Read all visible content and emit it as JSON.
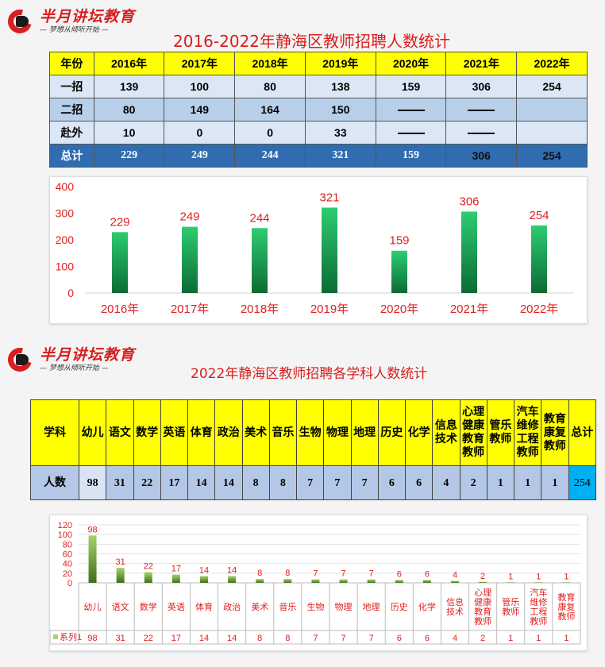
{
  "brand": {
    "name": "半月讲坛教育",
    "slogan": "— 梦想从倾听开始 —"
  },
  "section1": {
    "title": "2016-2022年静海区教师招聘人数统计",
    "table": {
      "header": [
        "年份",
        "2016年",
        "2017年",
        "2018年",
        "2019年",
        "2020年",
        "2021年",
        "2022年"
      ],
      "rows": [
        [
          "一招",
          "139",
          "100",
          "80",
          "138",
          "159",
          "306",
          "254"
        ],
        [
          "二招",
          "80",
          "149",
          "164",
          "150",
          "—",
          "—",
          ""
        ],
        [
          "赴外",
          "10",
          "0",
          "0",
          "33",
          "—",
          "—",
          ""
        ],
        [
          "总计",
          "229",
          "249",
          "244",
          "321",
          "159",
          "306",
          "254"
        ]
      ]
    }
  },
  "chart_data": [
    {
      "type": "bar",
      "categories": [
        "2016年",
        "2017年",
        "2018年",
        "2019年",
        "2020年",
        "2021年",
        "2022年"
      ],
      "values": [
        229,
        249,
        244,
        321,
        159,
        306,
        254
      ],
      "ylim": [
        0,
        400
      ],
      "yticks": [
        0,
        100,
        200,
        300,
        400
      ],
      "grid": false,
      "data_labels": true,
      "colors": {
        "bar_top": "#2ecc71",
        "bar_bottom": "#0b6b34",
        "labels": "#e02020"
      }
    },
    {
      "type": "bar",
      "categories": [
        "幼儿",
        "语文",
        "数学",
        "英语",
        "体育",
        "政治",
        "美术",
        "音乐",
        "生物",
        "物理",
        "地理",
        "历史",
        "化学",
        "信息技术",
        "心理健康教育教师",
        "管乐教师",
        "汽车维修工程教师",
        "教育康复教师"
      ],
      "series": [
        {
          "name": "系列1",
          "values": [
            98,
            31,
            22,
            17,
            14,
            14,
            8,
            8,
            7,
            7,
            7,
            6,
            6,
            4,
            2,
            1,
            1,
            1
          ]
        }
      ],
      "ylim": [
        0,
        120
      ],
      "yticks": [
        0,
        20,
        40,
        60,
        80,
        100,
        120
      ],
      "grid": true,
      "data_labels": true,
      "data_table": true,
      "colors": {
        "bar_top": "#a8d26a",
        "bar_bottom": "#3f6f1a",
        "labels": "#e02020"
      }
    }
  ],
  "section2": {
    "title": "2022年静海区教师招聘各学科人数统计",
    "table": {
      "header_label": "学科",
      "header": [
        "幼儿",
        "语文",
        "数学",
        "英语",
        "体育",
        "政治",
        "美术",
        "音乐",
        "生物",
        "物理",
        "地理",
        "历史",
        "化学",
        "信息技术",
        "心理健康教育教师",
        "管乐教师",
        "汽车维修工程教师",
        "教育康复教师",
        "总计"
      ],
      "row_label": "人数",
      "values": [
        "98",
        "31",
        "22",
        "17",
        "14",
        "14",
        "8",
        "8",
        "7",
        "7",
        "7",
        "6",
        "6",
        "4",
        "2",
        "1",
        "1",
        "1",
        "254"
      ]
    }
  }
}
